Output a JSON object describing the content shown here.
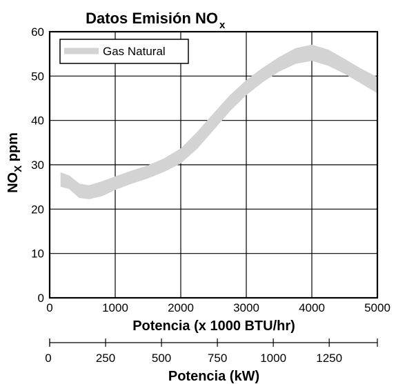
{
  "chart_data": {
    "type": "area",
    "title": "Datos Emisión NO",
    "title_sub": "x",
    "xlabel": "Potencia (x 1000 BTU/hr)",
    "ylabel_main": "NO",
    "ylabel_sub": "X",
    "ylabel_tail": " ppm",
    "xlim": [
      0,
      5000
    ],
    "ylim": [
      0,
      60
    ],
    "x_ticks": [
      0,
      1000,
      2000,
      3000,
      4000,
      5000
    ],
    "x_tick_labels": [
      "0",
      "1000",
      "2000",
      "3000",
      "4000",
      "5000"
    ],
    "y_ticks": [
      0,
      10,
      20,
      30,
      40,
      50,
      60
    ],
    "y_tick_labels": [
      "0",
      "10",
      "20",
      "30",
      "40",
      "50",
      "60"
    ],
    "grid": true,
    "legend_position": "top-left",
    "series": [
      {
        "name": "Gas Natural",
        "color": "#d3d3d3",
        "x": [
          170,
          300,
          450,
          600,
          800,
          1000,
          1250,
          1500,
          1750,
          2000,
          2250,
          2500,
          2750,
          3000,
          3250,
          3500,
          3750,
          4000,
          4250,
          4500,
          4750,
          5000
        ],
        "upper": [
          28.2,
          27.5,
          25.7,
          25.3,
          26.2,
          27.3,
          28.6,
          29.8,
          31.4,
          33.6,
          37.3,
          41.5,
          45.6,
          49.0,
          51.8,
          54.2,
          56.2,
          57.0,
          55.9,
          53.8,
          51.6,
          49.7
        ],
        "lower": [
          25.1,
          24.6,
          22.6,
          22.3,
          23.0,
          24.4,
          25.8,
          27.0,
          28.5,
          30.4,
          33.7,
          37.9,
          42.2,
          45.8,
          48.7,
          51.1,
          52.8,
          53.5,
          52.4,
          50.6,
          48.4,
          46.2
        ]
      }
    ],
    "secondary_axis": {
      "label": "Potencia (kW)",
      "ticks": [
        0,
        250,
        500,
        750,
        1000,
        1250
      ],
      "tick_labels": [
        "0",
        "250",
        "500",
        "750",
        "1000",
        "1250"
      ],
      "range": [
        0,
        1465.4
      ]
    }
  }
}
